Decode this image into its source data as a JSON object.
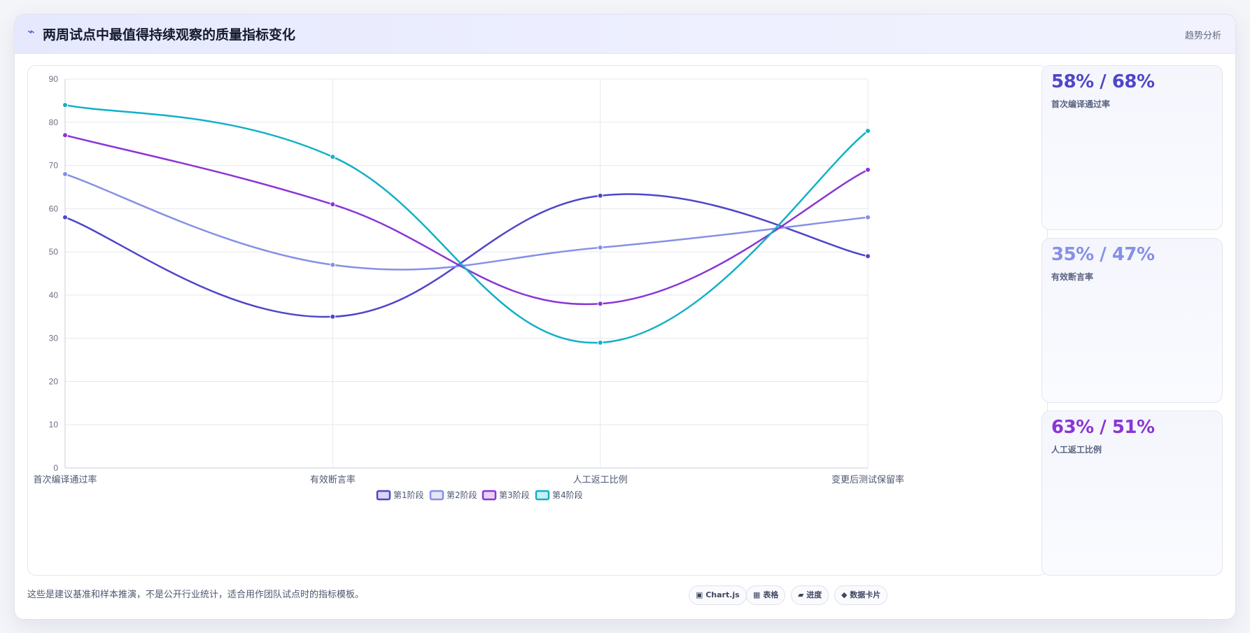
{
  "header": {
    "icon": "bolt-icon",
    "title": "两周试点中最值得持续观察的质量指标变化",
    "tag": "趋势分析"
  },
  "kpis": [
    {
      "value": "58% / 68%",
      "label": "首次编译通过率",
      "color": "#4f46c9"
    },
    {
      "value": "35% / 47%",
      "label": "有效断言率",
      "color": "#8590e6"
    },
    {
      "value": "63% / 51%",
      "label": "人工返工比例",
      "color": "#8b35d6"
    }
  ],
  "footer": {
    "note": "这些是建议基准和样本推演，不是公开行业统计，适合用作团队试点时的指标模板。",
    "pills": [
      "▣ Chart.js",
      "▦ 表格",
      "▰ 进度",
      "◆ 数据卡片"
    ]
  },
  "chart_data": {
    "type": "line",
    "categories": [
      "首次编译通过率",
      "有效断言率",
      "人工返工比例",
      "变更后测试保留率"
    ],
    "ylim": [
      0,
      90
    ],
    "yticks": [
      0,
      10,
      20,
      30,
      40,
      50,
      60,
      70,
      80,
      90
    ],
    "grid": true,
    "legend_position": "bottom",
    "series": [
      {
        "name": "第1阶段",
        "values": [
          58,
          35,
          63,
          49
        ],
        "color": "#4f46c9"
      },
      {
        "name": "第2阶段",
        "values": [
          68,
          47,
          51,
          58
        ],
        "color": "#8590e6"
      },
      {
        "name": "第3阶段",
        "values": [
          77,
          61,
          38,
          69
        ],
        "color": "#8b35d6"
      },
      {
        "name": "第4阶段",
        "values": [
          84,
          72,
          29,
          78
        ],
        "color": "#12b0c7"
      }
    ]
  }
}
